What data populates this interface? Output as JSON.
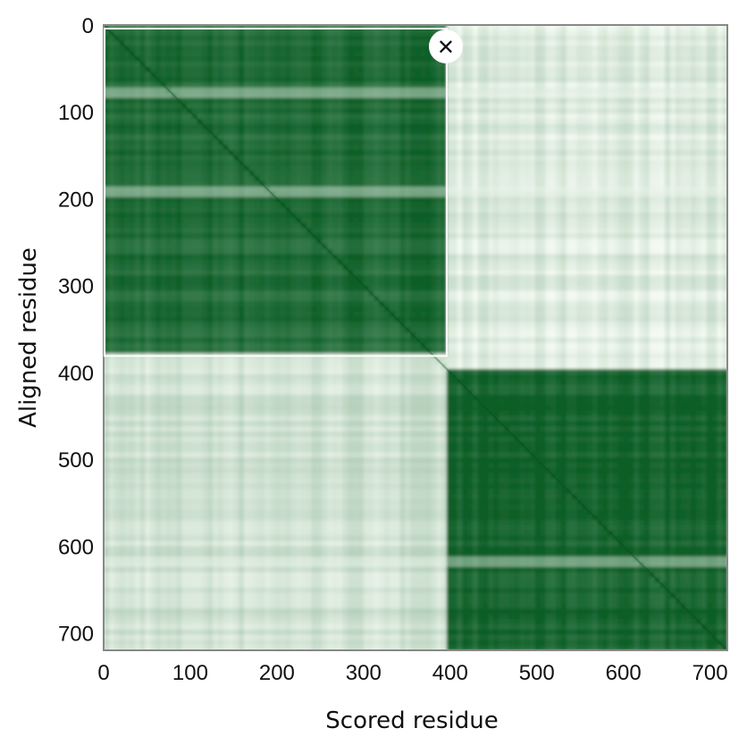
{
  "chart_data": {
    "type": "heatmap",
    "title": "",
    "xlabel": "Scored residue",
    "ylabel": "Aligned residue",
    "xlim": [
      0,
      720
    ],
    "ylim": [
      0,
      720
    ],
    "x_ticks": [
      "0",
      "100",
      "200",
      "300",
      "400",
      "500",
      "600",
      "700"
    ],
    "y_ticks": [
      "0",
      "100",
      "200",
      "300",
      "400",
      "500",
      "600",
      "700"
    ],
    "colormap": {
      "low": "#f4faf2",
      "high": "#0b5d25"
    },
    "domains": [
      {
        "start": 0,
        "end": 395
      },
      {
        "start": 395,
        "end": 720
      }
    ],
    "blocks": [
      {
        "x": [
          0,
          395
        ],
        "y": [
          0,
          380
        ],
        "level": 0.9
      },
      {
        "x": [
          395,
          720
        ],
        "y": [
          395,
          720
        ],
        "level": 0.95
      },
      {
        "x": [
          395,
          720
        ],
        "y": [
          0,
          395
        ],
        "level": 0.1
      },
      {
        "x": [
          0,
          395
        ],
        "y": [
          380,
          720
        ],
        "level": 0.16
      }
    ],
    "low_confidence_rows": [
      75,
      190,
      615
    ],
    "selection": {
      "x": [
        0,
        395
      ],
      "y": [
        0,
        380
      ]
    }
  },
  "ui": {
    "close_icon": "close-icon",
    "close_symbol": "✕"
  }
}
